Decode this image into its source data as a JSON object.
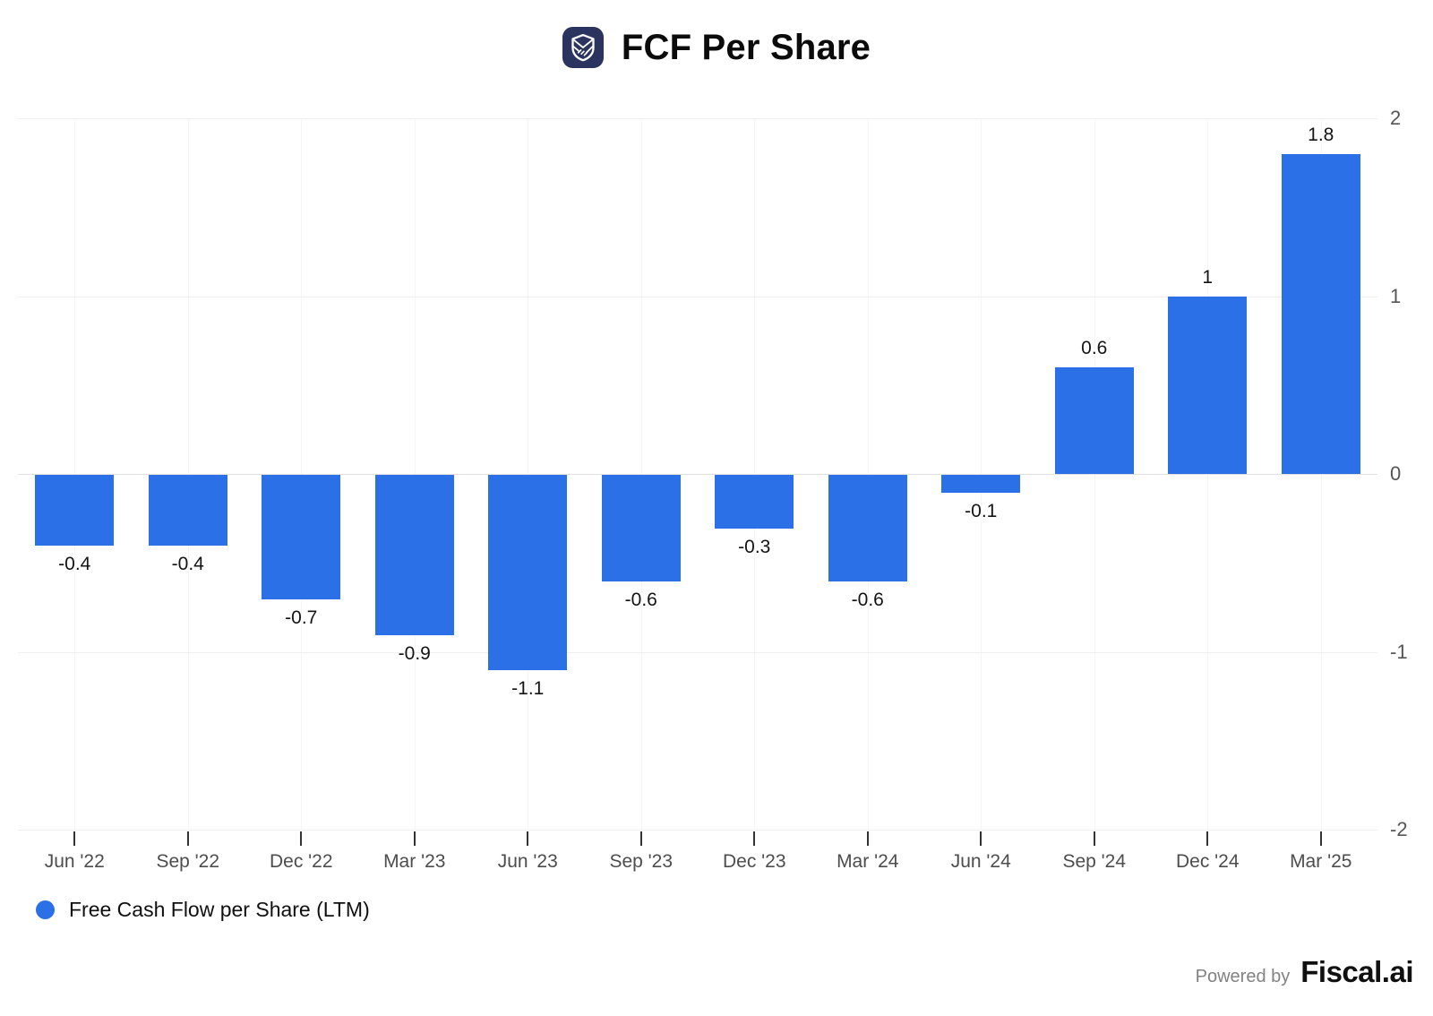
{
  "header": {
    "title": "FCF Per Share",
    "icon_color": "#2b335f"
  },
  "chart_data": {
    "type": "bar",
    "title": "FCF Per Share",
    "categories": [
      "Jun '22",
      "Sep '22",
      "Dec '22",
      "Mar '23",
      "Jun '23",
      "Sep '23",
      "Dec '23",
      "Mar '24",
      "Jun '24",
      "Sep '24",
      "Dec '24",
      "Mar '25"
    ],
    "series": [
      {
        "name": "Free Cash Flow per Share (LTM)",
        "values": [
          -0.4,
          -0.4,
          -0.7,
          -0.9,
          -1.1,
          -0.6,
          -0.3,
          -0.6,
          -0.1,
          0.6,
          1,
          1.8
        ],
        "labels": [
          "-0.4",
          "-0.4",
          "-0.7",
          "-0.9",
          "-1.1",
          "-0.6",
          "-0.3",
          "-0.6",
          "-0.1",
          "0.6",
          "1",
          "1.8"
        ]
      }
    ],
    "xlabel": "",
    "ylabel": "",
    "ylim": [
      -2,
      2
    ],
    "y_ticks": [
      2,
      1,
      0,
      -1,
      -2
    ],
    "y_axis_side": "right",
    "grid": true,
    "bar_color": "#2b70e6",
    "legend_position": "bottom-left"
  },
  "legend": {
    "label": "Free Cash Flow per Share (LTM)",
    "dot_color": "#2b70e6"
  },
  "footer": {
    "powered_by": "Powered by",
    "brand": "Fiscal.ai"
  }
}
